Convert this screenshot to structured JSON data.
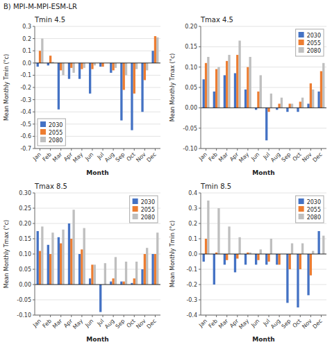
{
  "title": "B)  MPI-M-MPI-ESM-LR",
  "chart_data": [
    {
      "type": "bar",
      "title": "Tmin 4.5",
      "x_label": "Month",
      "y_label": "Mean Monthly Tmin (°c)",
      "categories": [
        "Jan",
        "Feb",
        "Mar",
        "Apr",
        "May",
        "Jun",
        "Jul",
        "Aug",
        "Sep",
        "Oct",
        "Nov",
        "Dec"
      ],
      "series": [
        {
          "name": "2030",
          "color": "#4472c4",
          "values": [
            -0.03,
            -0.02,
            -0.38,
            -0.13,
            -0.13,
            -0.25,
            -0.03,
            -0.08,
            -0.47,
            -0.55,
            -0.4,
            0.1
          ]
        },
        {
          "name": "2055",
          "color": "#ed7d31",
          "values": [
            0.1,
            0.06,
            -0.06,
            -0.04,
            -0.05,
            -0.05,
            -0.03,
            -0.06,
            -0.22,
            -0.25,
            -0.14,
            0.22
          ]
        },
        {
          "name": "2080",
          "color": "#bfbfbf",
          "values": [
            0.2,
            0.01,
            -0.1,
            -0.08,
            -0.04,
            -0.02,
            0.0,
            -0.04,
            -0.1,
            -0.05,
            -0.06,
            0.21
          ]
        }
      ],
      "ylim": [
        -0.7,
        0.3
      ],
      "yticks": [
        -0.7,
        -0.6,
        -0.5,
        -0.4,
        -0.3,
        -0.2,
        -0.1,
        {
          "value": 0,
          "label": "0.0"
        },
        0.1,
        0.2,
        0.3
      ],
      "grid": true,
      "legend": "lower left"
    },
    {
      "type": "bar",
      "title": "Tmax 4.5",
      "x_label": "Month",
      "y_label": "Mean Monthly Tmax (°c)",
      "categories": [
        "Jan",
        "Feb",
        "Mar",
        "Apr",
        "May",
        "Jun",
        "Jul",
        "Aug",
        "Sep",
        "Oct",
        "Nov",
        "Dec"
      ],
      "series": [
        {
          "name": "2030",
          "color": "#4472c4",
          "values": [
            0.07,
            0.04,
            0.08,
            0.085,
            0.045,
            -0.005,
            -0.08,
            -0.005,
            -0.01,
            -0.01,
            0.01,
            0.04
          ]
        },
        {
          "name": "2055",
          "color": "#ed7d31",
          "values": [
            0.11,
            0.095,
            0.115,
            0.13,
            0.1,
            0.04,
            -0.01,
            0.01,
            0.01,
            0.015,
            0.06,
            0.09
          ]
        },
        {
          "name": "2080",
          "color": "#bfbfbf",
          "values": [
            0.125,
            0.1,
            0.13,
            0.165,
            0.125,
            0.08,
            0.035,
            0.025,
            0.01,
            0.025,
            0.045,
            0.11
          ]
        }
      ],
      "ylim": [
        -0.1,
        0.2
      ],
      "yticks": [
        {
          "value": -0.1,
          "label": "-0.10"
        },
        -0.05,
        {
          "value": 0,
          "label": "0.00"
        },
        0.05,
        {
          "value": 0.1,
          "label": "0.10"
        },
        0.15,
        {
          "value": 0.2,
          "label": "0.20"
        }
      ],
      "grid": true,
      "legend": "upper right"
    },
    {
      "type": "bar",
      "title": "Tmax 8.5",
      "x_label": "Month",
      "y_label": "Mean Monthly Tmax (°c)",
      "categories": [
        "Jan",
        "Feb",
        "Mar",
        "Apr",
        "May",
        "Jun",
        "Jul",
        "Aug",
        "Sep",
        "Oct",
        "Nov",
        "Dec"
      ],
      "series": [
        {
          "name": "2030",
          "color": "#4472c4",
          "values": [
            0.175,
            0.13,
            0.155,
            0.2,
            0.1,
            0.02,
            -0.09,
            0.01,
            0.01,
            0.005,
            0.05,
            0.1
          ]
        },
        {
          "name": "2055",
          "color": "#ed7d31",
          "values": [
            0.11,
            0.1,
            0.135,
            0.15,
            0.115,
            0.065,
            0.0,
            0.02,
            0.01,
            0.02,
            0.1,
            0.1
          ]
        },
        {
          "name": "2080",
          "color": "#bfbfbf",
          "values": [
            0.19,
            0.17,
            0.18,
            0.245,
            0.185,
            0.065,
            0.07,
            0.09,
            0.075,
            0.075,
            0.12,
            0.17
          ]
        }
      ],
      "ylim": [
        -0.1,
        0.3
      ],
      "yticks": [
        {
          "value": -0.1,
          "label": "-0.10"
        },
        -0.05,
        {
          "value": 0,
          "label": "0.00"
        },
        0.05,
        {
          "value": 0.1,
          "label": "0.10"
        },
        0.15,
        {
          "value": 0.2,
          "label": "0.20"
        },
        0.25,
        {
          "value": 0.3,
          "label": "0.30"
        }
      ],
      "grid": true,
      "legend": "upper right"
    },
    {
      "type": "bar",
      "title": "Tmin 8.5",
      "x_label": "Month",
      "y_label": "Mean Monthly Tmin (°c)",
      "categories": [
        "Jan",
        "Feb",
        "Mar",
        "Apr",
        "May",
        "Jun",
        "Jul",
        "Aug",
        "Sep",
        "Oct",
        "Nov",
        "Dec"
      ],
      "series": [
        {
          "name": "2030",
          "color": "#4472c4",
          "values": [
            -0.05,
            -0.2,
            -0.07,
            -0.12,
            -0.07,
            -0.07,
            -0.07,
            -0.07,
            -0.32,
            -0.35,
            -0.27,
            0.15
          ]
        },
        {
          "name": "2055",
          "color": "#ed7d31",
          "values": [
            0.1,
            0.01,
            -0.04,
            -0.03,
            0.01,
            -0.04,
            -0.05,
            -0.07,
            -0.1,
            -0.1,
            -0.14,
            0.0
          ]
        },
        {
          "name": "2080",
          "color": "#bfbfbf",
          "values": [
            0.35,
            0.3,
            0.18,
            0.11,
            0.01,
            0.03,
            0.1,
            0.0,
            0.07,
            0.07,
            0.02,
            0.12
          ]
        }
      ],
      "ylim": [
        -0.4,
        0.4
      ],
      "yticks": [
        -0.4,
        -0.3,
        -0.2,
        -0.1,
        {
          "value": 0,
          "label": "0.0"
        },
        0.1,
        0.2,
        0.3,
        0.4
      ],
      "grid": true,
      "legend": "upper right"
    }
  ]
}
